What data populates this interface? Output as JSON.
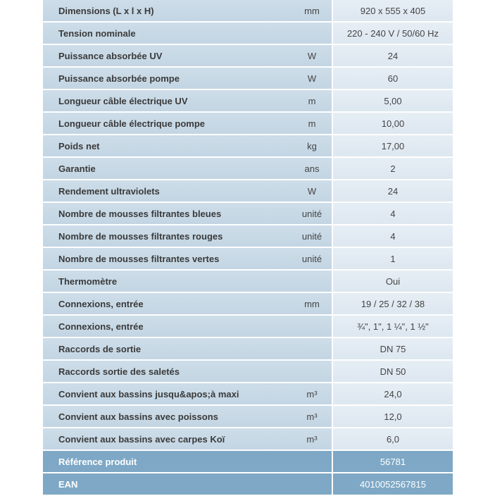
{
  "rows": [
    {
      "label": "Dimensions (L x l x H)",
      "unit": "mm",
      "value": "920 x 555 x 405"
    },
    {
      "label": "Tension nominale",
      "unit": "",
      "value": "220 - 240 V / 50/60 Hz"
    },
    {
      "label": "Puissance absorbée UV",
      "unit": "W",
      "value": "24"
    },
    {
      "label": "Puissance absorbée pompe",
      "unit": "W",
      "value": "60"
    },
    {
      "label": "Longueur câble électrique UV",
      "unit": "m",
      "value": "5,00"
    },
    {
      "label": "Longueur câble électrique pompe",
      "unit": "m",
      "value": "10,00"
    },
    {
      "label": "Poids net",
      "unit": "kg",
      "value": "17,00"
    },
    {
      "label": "Garantie",
      "unit": "ans",
      "value": "2"
    },
    {
      "label": "Rendement ultraviolets",
      "unit": "W",
      "value": "24"
    },
    {
      "label": "Nombre de mousses filtrantes bleues",
      "unit": "unité",
      "value": "4"
    },
    {
      "label": "Nombre de mousses filtrantes rouges",
      "unit": "unité",
      "value": "4"
    },
    {
      "label": "Nombre de mousses filtrantes vertes",
      "unit": "unité",
      "value": "1"
    },
    {
      "label": "Thermomètre",
      "unit": "",
      "value": "Oui"
    },
    {
      "label": "Connexions, entrée",
      "unit": "mm",
      "value": "19 / 25 / 32 / 38"
    },
    {
      "label": "Connexions, entrée",
      "unit": "",
      "value": "¾\", 1\", 1 ¼\", 1 ½\""
    },
    {
      "label": "Raccords de sortie",
      "unit": "",
      "value": "DN 75"
    },
    {
      "label": "Raccords sortie des saletés",
      "unit": "",
      "value": "DN 50"
    },
    {
      "label": "Convient aux bassins jusqu&apos;à maxi",
      "unit": "m³",
      "value": "24,0"
    },
    {
      "label": "Convient aux bassins avec poissons",
      "unit": "m³",
      "value": "12,0"
    },
    {
      "label": "Convient aux bassins avec carpes Koï",
      "unit": "m³",
      "value": "6,0"
    }
  ],
  "footer": [
    {
      "label": "Référence produit",
      "value": "56781"
    },
    {
      "label": "EAN",
      "value": "4010052567815"
    }
  ]
}
